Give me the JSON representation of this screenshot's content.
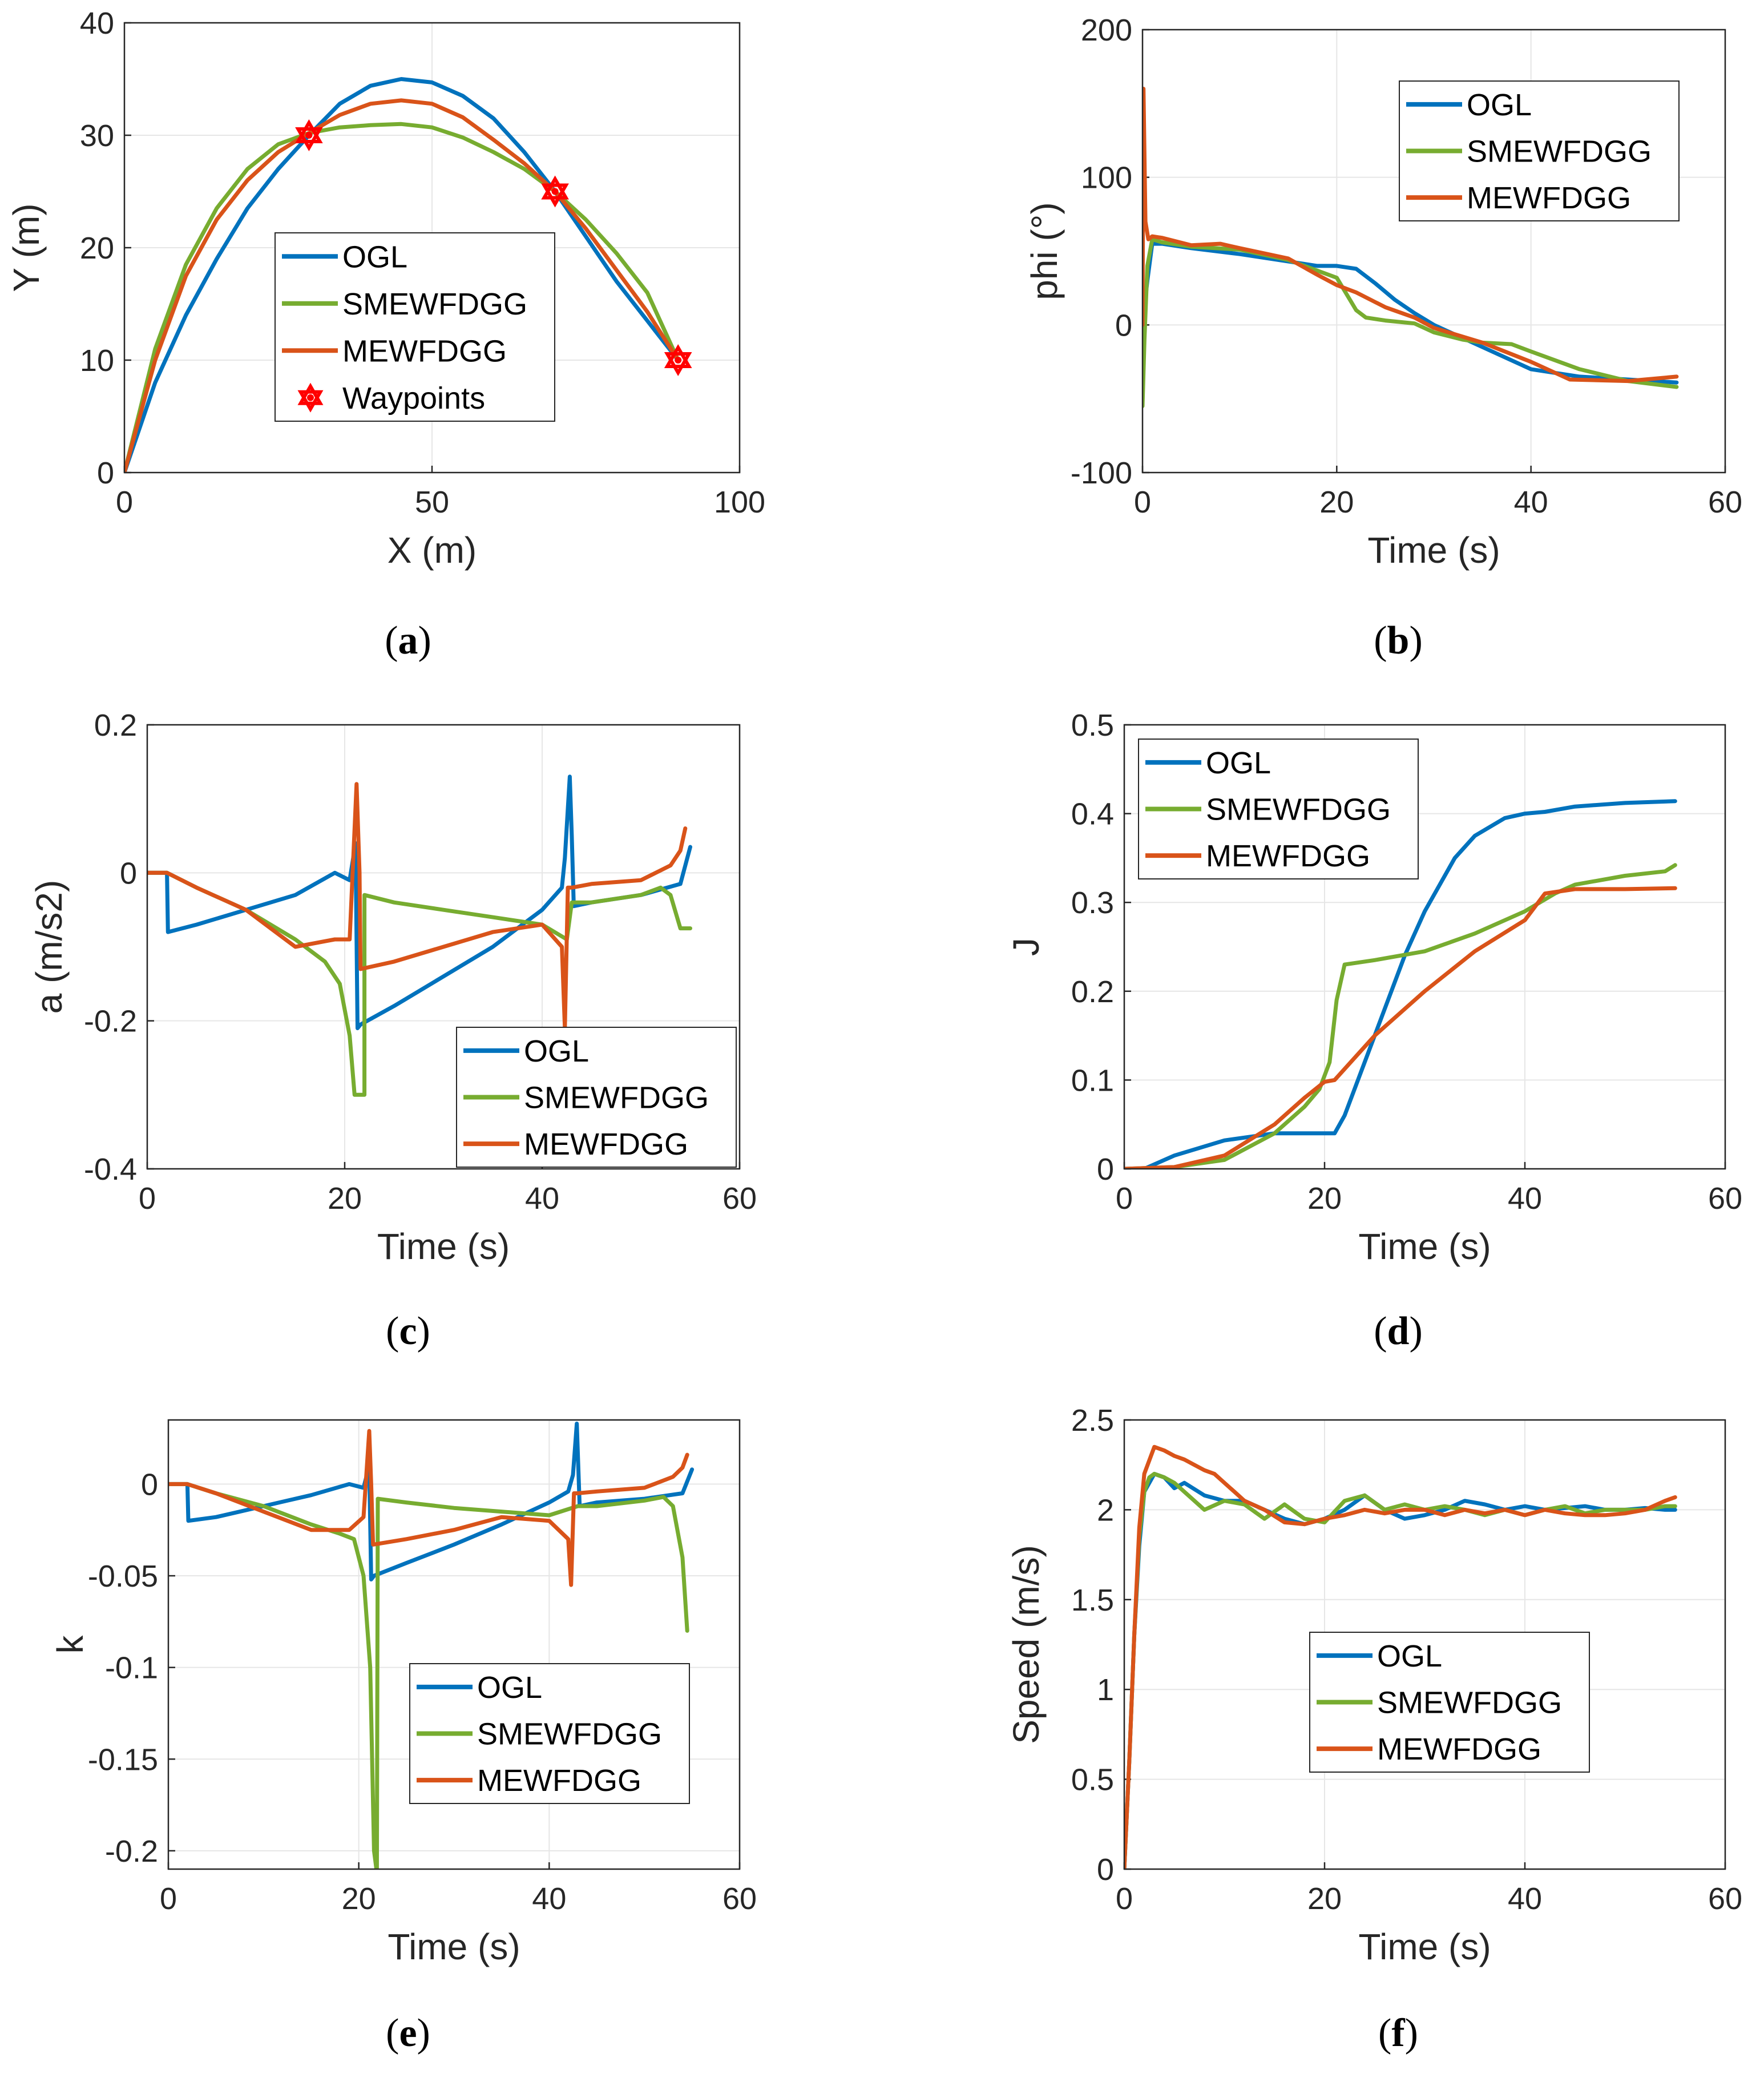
{
  "colors": {
    "OGL": "#0072BD",
    "SMEWFDGG": "#77AC30",
    "MEWFDGG": "#D95319",
    "Waypoints": "#FF0000"
  },
  "chart_data": [
    {
      "id": "a",
      "type": "line",
      "caption_letter": "a",
      "xlabel": "X (m)",
      "ylabel": "Y (m)",
      "xlim": [
        0,
        100
      ],
      "ylim": [
        0,
        40
      ],
      "xticks": [
        "0",
        "50",
        "100"
      ],
      "yticks": [
        "0",
        "10",
        "20",
        "30",
        "40"
      ],
      "legend": [
        "OGL",
        "SMEWFDGG",
        "MEWFDGG",
        "Waypoints"
      ],
      "series": [
        {
          "name": "OGL",
          "x": [
            0,
            5,
            10,
            15,
            20,
            25,
            30,
            35,
            40,
            45,
            50,
            55,
            60,
            65,
            70,
            75,
            80,
            85,
            90
          ],
          "y": [
            0,
            8,
            14,
            19,
            23.5,
            27,
            30,
            32.8,
            34.4,
            35,
            34.7,
            33.5,
            31.5,
            28.5,
            25,
            21,
            17,
            13.5,
            10
          ]
        },
        {
          "name": "SMEWFDGG",
          "x": [
            0,
            5,
            10,
            15,
            20,
            25,
            30,
            35,
            40,
            45,
            50,
            55,
            60,
            65,
            70,
            75,
            80,
            85,
            90
          ],
          "y": [
            0,
            11,
            18.5,
            23.5,
            27,
            29.2,
            30.2,
            30.7,
            30.9,
            31,
            30.7,
            29.8,
            28.5,
            27,
            25,
            22.5,
            19.5,
            16,
            10
          ]
        },
        {
          "name": "MEWFDGG",
          "x": [
            0,
            5,
            10,
            15,
            20,
            25,
            30,
            35,
            40,
            45,
            50,
            55,
            60,
            65,
            70,
            75,
            80,
            85,
            90
          ],
          "y": [
            0,
            10,
            17.5,
            22.5,
            26,
            28.5,
            30.2,
            31.8,
            32.8,
            33.1,
            32.8,
            31.6,
            29.6,
            27.5,
            25,
            21.7,
            18,
            14.3,
            10
          ]
        },
        {
          "name": "Waypoints",
          "x": [
            30,
            70,
            90
          ],
          "y": [
            30,
            25,
            10
          ]
        }
      ]
    },
    {
      "id": "b",
      "type": "line",
      "caption_letter": "b",
      "xlabel": "Time (s)",
      "ylabel": "phi (°)",
      "xlim": [
        0,
        60
      ],
      "ylim": [
        -100,
        200
      ],
      "xticks": [
        "0",
        "20",
        "40",
        "60"
      ],
      "yticks": [
        "-100",
        "0",
        "100",
        "200"
      ],
      "legend": [
        "OGL",
        "SMEWFDGG",
        "MEWFDGG"
      ],
      "series": [
        {
          "name": "OGL",
          "x": [
            0,
            0.5,
            1,
            2,
            5,
            10,
            15,
            18,
            20,
            22,
            24,
            26,
            28,
            30,
            35,
            40,
            45,
            50,
            55
          ],
          "y": [
            0,
            30,
            55,
            55,
            52,
            48,
            43,
            40,
            40,
            38,
            28,
            17,
            8,
            0,
            -15,
            -30,
            -35,
            -37,
            -39
          ]
        },
        {
          "name": "SMEWFDGG",
          "x": [
            0,
            0.2,
            0.5,
            1,
            2,
            5,
            10,
            15,
            20,
            22,
            23,
            25,
            28,
            30,
            33,
            35,
            38,
            40,
            45,
            50,
            55
          ],
          "y": [
            -55,
            -10,
            40,
            58,
            56,
            53,
            51,
            44,
            32,
            10,
            5,
            3,
            1,
            -5,
            -10,
            -12,
            -13,
            -18,
            -30,
            -38,
            -42
          ]
        },
        {
          "name": "MEWFDGG",
          "x": [
            0,
            0.1,
            0.3,
            0.6,
            1,
            2,
            5,
            8,
            10,
            15,
            18,
            20,
            22,
            25,
            28,
            30,
            35,
            40,
            44,
            50,
            55
          ],
          "y": [
            0,
            160,
            70,
            58,
            60,
            59,
            54,
            55,
            52,
            45,
            34,
            27,
            22,
            12,
            5,
            -2,
            -12,
            -25,
            -37,
            -38,
            -35
          ]
        }
      ]
    },
    {
      "id": "c",
      "type": "line",
      "caption_letter": "c",
      "xlabel": "Time (s)",
      "ylabel": "a (m/s2)",
      "xlim": [
        0,
        60
      ],
      "ylim": [
        -0.4,
        0.2
      ],
      "xticks": [
        "0",
        "20",
        "40",
        "60"
      ],
      "yticks": [
        "-0.4",
        "-0.2",
        "0",
        "0.2"
      ],
      "legend": [
        "OGL",
        "SMEWFDGG",
        "MEWFDGG"
      ],
      "series": [
        {
          "name": "OGL",
          "x": [
            0,
            2,
            2.1,
            5,
            10,
            15,
            19,
            20.5,
            21.1,
            21.3,
            21.6,
            25,
            30,
            35,
            40,
            42,
            42.3,
            42.8,
            43,
            43.2,
            45,
            50,
            54,
            55
          ],
          "y": [
            0,
            0,
            -0.08,
            -0.07,
            -0.05,
            -0.03,
            0,
            -0.01,
            0.04,
            -0.21,
            -0.205,
            -0.18,
            -0.14,
            -0.1,
            -0.05,
            -0.02,
            0.02,
            0.13,
            0.05,
            -0.045,
            -0.04,
            -0.03,
            -0.015,
            0.035
          ]
        },
        {
          "name": "SMEWFDGG",
          "x": [
            0,
            2,
            5,
            10,
            15,
            18,
            19.5,
            20.5,
            21,
            22,
            22,
            25,
            30,
            35,
            40,
            42.5,
            43,
            45,
            50,
            52,
            53,
            54,
            55
          ],
          "y": [
            0,
            0,
            -0.02,
            -0.05,
            -0.09,
            -0.12,
            -0.15,
            -0.22,
            -0.3,
            -0.3,
            -0.03,
            -0.04,
            -0.05,
            -0.06,
            -0.07,
            -0.09,
            -0.04,
            -0.04,
            -0.03,
            -0.02,
            -0.03,
            -0.075,
            -0.075
          ]
        },
        {
          "name": "MEWFDGG",
          "x": [
            0,
            2,
            5,
            10,
            15,
            19,
            20.5,
            21.2,
            21.5,
            21.6,
            25,
            30,
            35,
            40,
            42,
            42.3,
            42.6,
            43,
            45,
            50,
            53,
            54,
            54.5
          ],
          "y": [
            0,
            0,
            -0.02,
            -0.05,
            -0.1,
            -0.09,
            -0.09,
            0.12,
            0,
            -0.13,
            -0.12,
            -0.1,
            -0.08,
            -0.07,
            -0.1,
            -0.21,
            -0.02,
            -0.02,
            -0.015,
            -0.01,
            0.01,
            0.03,
            0.06
          ]
        }
      ]
    },
    {
      "id": "d",
      "type": "line",
      "caption_letter": "d",
      "xlabel": "Time (s)",
      "ylabel": "J",
      "xlim": [
        0,
        60
      ],
      "ylim": [
        0,
        0.5
      ],
      "xticks": [
        "0",
        "20",
        "40",
        "60"
      ],
      "yticks": [
        "0",
        "0.1",
        "0.2",
        "0.3",
        "0.4",
        "0.5"
      ],
      "legend": [
        "OGL",
        "SMEWFDGG",
        "MEWFDGG"
      ],
      "series": [
        {
          "name": "OGL",
          "x": [
            0,
            2,
            5,
            10,
            15,
            21,
            22,
            25,
            28,
            30,
            33,
            35,
            38,
            40,
            42,
            45,
            50,
            55
          ],
          "y": [
            0,
            0,
            0.015,
            0.032,
            0.04,
            0.04,
            0.06,
            0.15,
            0.24,
            0.29,
            0.35,
            0.375,
            0.395,
            0.4,
            0.402,
            0.408,
            0.412,
            0.414
          ]
        },
        {
          "name": "SMEWFDGG",
          "x": [
            0,
            5,
            10,
            15,
            18,
            19.5,
            20.5,
            21.2,
            22,
            25,
            30,
            35,
            40,
            43,
            45,
            50,
            54,
            55
          ],
          "y": [
            0,
            0.002,
            0.01,
            0.04,
            0.07,
            0.09,
            0.12,
            0.19,
            0.23,
            0.235,
            0.245,
            0.265,
            0.29,
            0.31,
            0.32,
            0.33,
            0.335,
            0.342
          ]
        },
        {
          "name": "MEWFDGG",
          "x": [
            0,
            5,
            10,
            15,
            18,
            20,
            21,
            25,
            28,
            30,
            35,
            40,
            42,
            45,
            50,
            55
          ],
          "y": [
            0,
            0.002,
            0.015,
            0.05,
            0.08,
            0.098,
            0.1,
            0.15,
            0.18,
            0.2,
            0.245,
            0.28,
            0.31,
            0.315,
            0.315,
            0.316
          ]
        }
      ]
    },
    {
      "id": "e",
      "type": "line",
      "caption_letter": "e",
      "xlabel": "Time (s)",
      "ylabel": "k",
      "xlim": [
        0,
        60
      ],
      "ylim": [
        -0.21,
        0.035
      ],
      "xticks": [
        "0",
        "20",
        "40",
        "60"
      ],
      "yticks": [
        "-0.2",
        "-0.15",
        "-0.1",
        "-0.05",
        "0"
      ],
      "legend": [
        "OGL",
        "SMEWFDGG",
        "MEWFDGG"
      ],
      "series": [
        {
          "name": "OGL",
          "x": [
            0,
            2,
            2.1,
            5,
            10,
            15,
            19,
            20.5,
            21.1,
            21.3,
            21.6,
            25,
            30,
            35,
            40,
            42,
            42.5,
            42.9,
            43.2,
            45,
            50,
            54,
            55
          ],
          "y": [
            0,
            0,
            -0.02,
            -0.018,
            -0.012,
            -0.006,
            0,
            -0.002,
            0.01,
            -0.052,
            -0.05,
            -0.043,
            -0.033,
            -0.022,
            -0.01,
            -0.004,
            0.005,
            0.033,
            -0.012,
            -0.01,
            -0.008,
            -0.005,
            0.008
          ]
        },
        {
          "name": "SMEWFDGG",
          "x": [
            0,
            2,
            5,
            10,
            15,
            18,
            19.5,
            20.5,
            21.2,
            21.6,
            21.9,
            22,
            25,
            30,
            35,
            40,
            43,
            45,
            50,
            52,
            53,
            54,
            54.5
          ],
          "y": [
            0,
            0,
            -0.005,
            -0.012,
            -0.022,
            -0.027,
            -0.03,
            -0.05,
            -0.1,
            -0.2,
            -0.212,
            -0.008,
            -0.01,
            -0.013,
            -0.015,
            -0.017,
            -0.012,
            -0.012,
            -0.009,
            -0.007,
            -0.012,
            -0.04,
            -0.08
          ]
        },
        {
          "name": "MEWFDGG",
          "x": [
            0,
            2,
            5,
            10,
            15,
            19,
            20.5,
            21.1,
            21.3,
            21.5,
            25,
            30,
            35,
            40,
            42,
            42.3,
            42.6,
            43,
            45,
            50,
            53,
            54,
            54.5
          ],
          "y": [
            0,
            0,
            -0.005,
            -0.015,
            -0.025,
            -0.025,
            -0.018,
            0.029,
            0,
            -0.033,
            -0.03,
            -0.025,
            -0.018,
            -0.02,
            -0.03,
            -0.055,
            -0.005,
            -0.005,
            -0.004,
            -0.002,
            0.004,
            0.009,
            0.016
          ]
        }
      ]
    },
    {
      "id": "f",
      "type": "line",
      "caption_letter": "f",
      "xlabel": "Time (s)",
      "ylabel": "Speed (m/s)",
      "xlim": [
        0,
        60
      ],
      "ylim": [
        0,
        2.5
      ],
      "xticks": [
        "0",
        "20",
        "40",
        "60"
      ],
      "yticks": [
        "0",
        "0.5",
        "1",
        "1.5",
        "2",
        "2.5"
      ],
      "legend": [
        "OGL",
        "SMEWFDGG",
        "MEWFDGG"
      ],
      "series": [
        {
          "name": "OGL",
          "x": [
            0,
            0.5,
            1,
            1.5,
            2,
            3,
            4,
            5,
            6,
            8,
            10,
            12,
            14,
            16,
            18,
            20,
            22,
            24,
            26,
            28,
            30,
            32,
            34,
            36,
            38,
            40,
            42,
            44,
            46,
            48,
            50,
            52,
            54,
            55
          ],
          "y": [
            0,
            0.6,
            1.3,
            1.8,
            2.1,
            2.2,
            2.18,
            2.12,
            2.15,
            2.08,
            2.05,
            2.05,
            2,
            1.95,
            1.92,
            1.95,
            2.0,
            2.08,
            2.0,
            1.95,
            1.97,
            2.0,
            2.05,
            2.03,
            2.0,
            2.02,
            2.0,
            2.01,
            2.02,
            2.0,
            2.0,
            2.01,
            2.0,
            2.0
          ]
        },
        {
          "name": "SMEWFDGG",
          "x": [
            0,
            0.5,
            1,
            1.5,
            2,
            2.5,
            3,
            4,
            5,
            6,
            8,
            10,
            12,
            14,
            16,
            18,
            20,
            22,
            24,
            26,
            28,
            30,
            32,
            34,
            36,
            38,
            40,
            42,
            44,
            46,
            48,
            50,
            52,
            54,
            55
          ],
          "y": [
            0,
            0.6,
            1.3,
            1.85,
            2.1,
            2.18,
            2.2,
            2.18,
            2.15,
            2.1,
            2.0,
            2.05,
            2.03,
            1.95,
            2.03,
            1.95,
            1.93,
            2.05,
            2.08,
            2.0,
            2.03,
            2.0,
            2.02,
            2.0,
            1.97,
            2.0,
            1.97,
            2.0,
            2.02,
            1.98,
            2.0,
            2.0,
            2.0,
            2.02,
            2.02
          ]
        },
        {
          "name": "MEWFDGG",
          "x": [
            0,
            0.5,
            1,
            1.5,
            2,
            3,
            4,
            5,
            6,
            7,
            8,
            9,
            10,
            11,
            12,
            14,
            16,
            18,
            20,
            22,
            24,
            26,
            28,
            30,
            32,
            34,
            36,
            38,
            40,
            42,
            44,
            46,
            48,
            50,
            52,
            54,
            55
          ],
          "y": [
            0,
            0.6,
            1.3,
            1.9,
            2.2,
            2.35,
            2.33,
            2.3,
            2.28,
            2.25,
            2.22,
            2.2,
            2.15,
            2.1,
            2.05,
            2.0,
            1.93,
            1.92,
            1.95,
            1.97,
            2.0,
            1.98,
            2.0,
            2.0,
            1.97,
            2.0,
            1.98,
            2.0,
            1.97,
            2.0,
            1.98,
            1.97,
            1.97,
            1.98,
            2.0,
            2.05,
            2.07
          ]
        }
      ]
    }
  ]
}
